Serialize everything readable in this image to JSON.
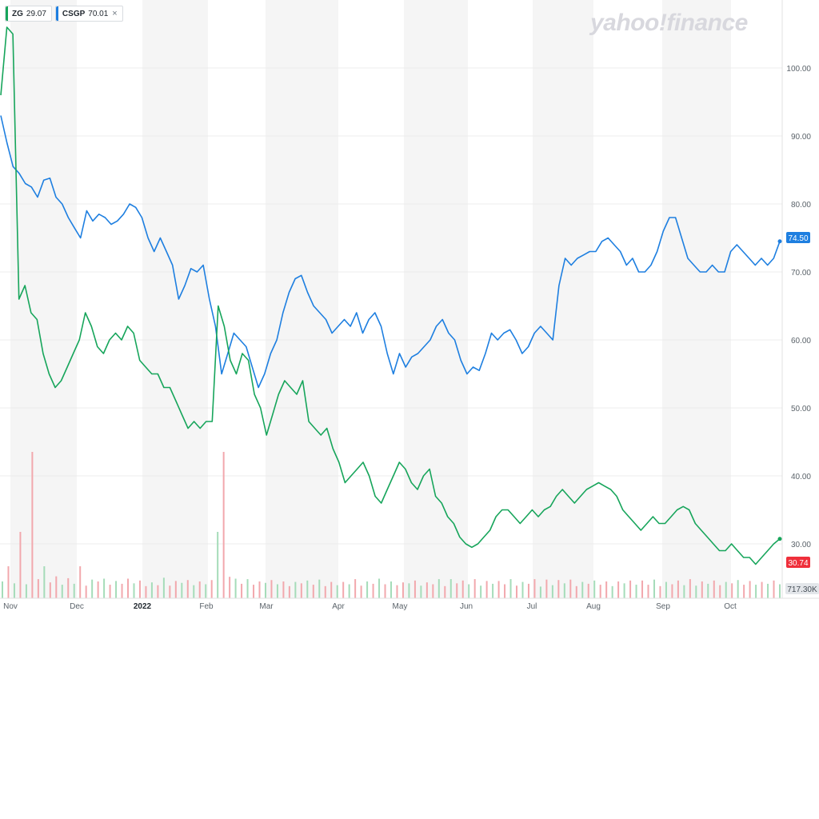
{
  "legend": {
    "items": [
      {
        "symbol": "ZG",
        "value": "29.07",
        "color": "#17a55b"
      },
      {
        "symbol": "CSGP",
        "value": "70.01",
        "color": "#1e7fe0"
      }
    ],
    "close_glyph": "×"
  },
  "brand": "yahoo!finance",
  "badges": {
    "csgp_last": "74.50",
    "zg_last": "30.74",
    "volume": "717.30K"
  },
  "colors": {
    "zg": "#17a55b",
    "csgp": "#1e7fe0",
    "badge_red": "#ef2f3b",
    "vol_up": "#a5dcb9",
    "vol_down": "#f2a8ad",
    "band": "#f5f5f5"
  },
  "chart_data": {
    "type": "line",
    "y_axis": {
      "ylim": [
        22,
        110
      ],
      "ticks": [
        "100.00",
        "90.00",
        "80.00",
        "70.00",
        "60.00",
        "50.00",
        "40.00",
        "30.00"
      ]
    },
    "x_axis": {
      "ticks": [
        {
          "label": "Nov",
          "bold": false
        },
        {
          "label": "Dec",
          "bold": false
        },
        {
          "label": "2022",
          "bold": true
        },
        {
          "label": "Feb",
          "bold": false
        },
        {
          "label": "Mar",
          "bold": false
        },
        {
          "label": "Apr",
          "bold": false
        },
        {
          "label": "May",
          "bold": false
        },
        {
          "label": "Jun",
          "bold": false
        },
        {
          "label": "Jul",
          "bold": false
        },
        {
          "label": "Aug",
          "bold": false
        },
        {
          "label": "Sep",
          "bold": false
        },
        {
          "label": "Oct",
          "bold": false
        }
      ]
    },
    "series": [
      {
        "name": "CSGP",
        "values": [
          93,
          89,
          85.5,
          84.5,
          83,
          82.5,
          81,
          83.5,
          83.8,
          81,
          80,
          78,
          76.5,
          75,
          79,
          77.5,
          78.5,
          78,
          77,
          77.5,
          78.5,
          80,
          79.5,
          78,
          75,
          73,
          75,
          73,
          71,
          66,
          68,
          70.5,
          70,
          71,
          66,
          62,
          55,
          58,
          61,
          60,
          59,
          56,
          53,
          55,
          58,
          60,
          64,
          67,
          69,
          69.5,
          67,
          65,
          64,
          63,
          61,
          62,
          63,
          62,
          64,
          61,
          63,
          64,
          62,
          58,
          55,
          58,
          56,
          57.5,
          58,
          59,
          60,
          62,
          63,
          61,
          60,
          57,
          55,
          56,
          55.5,
          58,
          61,
          60,
          61,
          61.5,
          60,
          58,
          59,
          61,
          62,
          61,
          60,
          68,
          72,
          71,
          72,
          72.5,
          73,
          73,
          74.5,
          75,
          74,
          73,
          71,
          72,
          70,
          70,
          71,
          73,
          76,
          78,
          78,
          75,
          72,
          71,
          70,
          70,
          71,
          70,
          70,
          73,
          74,
          73,
          72,
          71,
          72,
          71,
          72,
          74.5
        ]
      },
      {
        "name": "ZG",
        "values": [
          96,
          106,
          105,
          66,
          68,
          64,
          63,
          58,
          55,
          53,
          54,
          56,
          58,
          60,
          64,
          62,
          59,
          58,
          60,
          61,
          60,
          62,
          61,
          57,
          56,
          55,
          55,
          53,
          53,
          51,
          49,
          47,
          48,
          47,
          48,
          48,
          65,
          62,
          57,
          55,
          58,
          57,
          52,
          50,
          46,
          49,
          52,
          54,
          53,
          52,
          54,
          48,
          47,
          46,
          47,
          44,
          42,
          39,
          40,
          41,
          42,
          40,
          37,
          36,
          38,
          40,
          42,
          41,
          39,
          38,
          40,
          41,
          37,
          36,
          34,
          33,
          31,
          30,
          29.5,
          30,
          31,
          32,
          34,
          35,
          35,
          34,
          33,
          34,
          35,
          34,
          35,
          35.5,
          37,
          38,
          37,
          36,
          37,
          38,
          38.5,
          39,
          38.5,
          38,
          37,
          35,
          34,
          33,
          32,
          33,
          34,
          33,
          33,
          34,
          35,
          35.5,
          35,
          33,
          32,
          31,
          30,
          29,
          29,
          30,
          29,
          28,
          28,
          27,
          28,
          29,
          30,
          30.74
        ]
      }
    ],
    "volume": {
      "values": [
        3.6,
        5.2,
        3.2,
        6.0,
        3.0,
        6.7,
        4.1,
        5.1,
        3.4,
        4.7,
        2.9,
        4.3,
        3.1,
        5.0,
        2.7,
        4.0,
        3.6,
        4.2,
        2.9,
        3.7,
        3.1,
        4.2,
        3.2,
        3.8,
        2.6,
        3.4,
        2.8,
        4.4,
        2.7,
        3.7,
        3.3,
        3.9,
        2.8,
        3.6,
        3.0,
        3.9,
        6.4,
        7.2,
        4.6,
        4.2,
        3.1,
        4.1,
        2.9,
        3.6,
        3.3,
        3.9,
        3.0,
        3.6,
        2.6,
        3.5,
        3.2,
        3.8,
        2.9,
        4.0,
        2.6,
        3.5,
        2.8,
        3.5,
        3.0,
        4.1,
        2.7,
        3.6,
        3.1,
        4.2,
        3.0,
        3.6,
        2.8,
        3.4,
        3.2,
        3.8,
        2.7,
        3.4,
        3.0,
        4.1,
        2.6,
        4.1,
        3.2,
        3.8,
        3.0,
        4.1,
        2.7,
        3.7,
        3.1,
        3.7,
        3.0,
        4.1,
        2.7,
        3.5,
        3.1,
        4.1,
        2.5,
        4.0,
        2.8,
        3.9,
        3.2,
        4.0,
        2.6,
        3.5,
        3.1,
        3.8,
        2.9,
        3.6,
        2.6,
        3.6,
        3.2,
        3.8,
        2.9,
        3.8,
        2.9,
        4.0,
        2.6,
        3.5,
        3.0,
        3.8,
        2.8,
        4.1,
        2.7,
        3.6,
        3.1,
        3.8,
        2.8,
        3.5,
        3.2,
        3.9,
        2.9,
        3.7,
        2.9,
        3.5,
        3.1,
        3.8,
        3.0
      ],
      "direction": [
        1,
        0,
        1,
        0,
        1,
        0,
        0,
        1,
        0,
        0,
        1,
        0,
        1,
        0,
        0,
        1,
        0,
        1,
        0,
        1,
        0,
        0,
        1,
        0,
        0,
        1,
        0,
        1,
        0,
        0,
        1,
        0,
        1,
        0,
        1,
        0,
        1,
        0,
        0,
        1,
        0,
        1,
        0,
        0,
        1,
        0,
        1,
        0,
        0,
        1,
        0,
        1,
        0,
        1,
        0,
        0,
        1,
        0,
        1,
        0,
        0,
        1,
        0,
        1,
        0,
        1,
        0,
        0,
        1,
        0,
        1,
        0,
        0,
        1,
        0,
        1,
        0,
        0,
        1,
        0,
        1,
        0,
        1,
        0,
        0,
        1,
        0,
        1,
        0,
        0,
        1,
        0,
        1,
        0,
        1,
        0,
        0,
        1,
        0,
        1,
        0,
        0,
        1,
        0,
        1,
        0,
        1,
        0,
        0,
        1,
        0,
        1,
        0,
        0,
        1,
        0,
        1,
        0,
        1,
        0,
        0,
        1,
        0,
        1,
        0,
        0,
        1,
        0,
        1,
        0,
        1,
        1
      ]
    },
    "grid": true,
    "legend_position": "top-left"
  }
}
